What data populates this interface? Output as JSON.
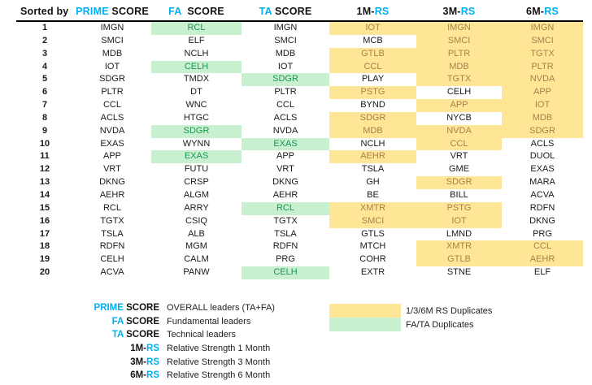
{
  "header": {
    "sorted_by": "Sorted by",
    "columns": [
      {
        "name": "prime-score",
        "parts": [
          {
            "t": "PRIME",
            "c": "accent"
          },
          {
            "t": " SCORE",
            "c": "ink"
          }
        ]
      },
      {
        "name": "fa-score",
        "parts": [
          {
            "t": "FA",
            "c": "accent"
          },
          {
            "t": "  SCORE",
            "c": "ink"
          }
        ]
      },
      {
        "name": "ta-score",
        "parts": [
          {
            "t": "TA",
            "c": "accent"
          },
          {
            "t": " SCORE",
            "c": "ink"
          }
        ]
      },
      {
        "name": "1m-rs",
        "parts": [
          {
            "t": "1M-",
            "c": "ink"
          },
          {
            "t": "RS",
            "c": "accent"
          }
        ]
      },
      {
        "name": "3m-rs",
        "parts": [
          {
            "t": "3M-",
            "c": "ink"
          },
          {
            "t": "RS",
            "c": "accent"
          }
        ]
      },
      {
        "name": "6m-rs",
        "parts": [
          {
            "t": "6M-",
            "c": "ink"
          },
          {
            "t": "RS",
            "c": "accent"
          }
        ]
      }
    ]
  },
  "rows": [
    {
      "rank": "1",
      "cells": [
        {
          "t": "IMGN"
        },
        {
          "t": "RCL",
          "h": "g"
        },
        {
          "t": "IMGN"
        },
        {
          "t": "IOT",
          "h": "y"
        },
        {
          "t": "IMGN",
          "h": "y"
        },
        {
          "t": "IMGN",
          "h": "y"
        }
      ]
    },
    {
      "rank": "2",
      "cells": [
        {
          "t": "SMCI"
        },
        {
          "t": "ELF"
        },
        {
          "t": "SMCI"
        },
        {
          "t": "MCB"
        },
        {
          "t": "SMCI",
          "h": "y"
        },
        {
          "t": "SMCI",
          "h": "y"
        }
      ]
    },
    {
      "rank": "3",
      "cells": [
        {
          "t": "MDB"
        },
        {
          "t": "NCLH"
        },
        {
          "t": "MDB"
        },
        {
          "t": "GTLB",
          "h": "y"
        },
        {
          "t": "PLTR",
          "h": "y"
        },
        {
          "t": "TGTX",
          "h": "y"
        }
      ]
    },
    {
      "rank": "4",
      "cells": [
        {
          "t": "IOT"
        },
        {
          "t": "CELH",
          "h": "g"
        },
        {
          "t": "IOT"
        },
        {
          "t": "CCL",
          "h": "y"
        },
        {
          "t": "MDB",
          "h": "y"
        },
        {
          "t": "PLTR",
          "h": "y"
        }
      ]
    },
    {
      "rank": "5",
      "cells": [
        {
          "t": "SDGR"
        },
        {
          "t": "TMDX"
        },
        {
          "t": "SDGR",
          "h": "g"
        },
        {
          "t": "PLAY"
        },
        {
          "t": "TGTX",
          "h": "y"
        },
        {
          "t": "NVDA",
          "h": "y"
        }
      ]
    },
    {
      "rank": "6",
      "cells": [
        {
          "t": "PLTR"
        },
        {
          "t": "DT"
        },
        {
          "t": "PLTR"
        },
        {
          "t": "PSTG",
          "h": "y"
        },
        {
          "t": "CELH"
        },
        {
          "t": "APP",
          "h": "y"
        }
      ]
    },
    {
      "rank": "7",
      "cells": [
        {
          "t": "CCL"
        },
        {
          "t": "WNC"
        },
        {
          "t": "CCL"
        },
        {
          "t": "BYND"
        },
        {
          "t": "APP",
          "h": "y"
        },
        {
          "t": "IOT",
          "h": "y"
        }
      ]
    },
    {
      "rank": "8",
      "cells": [
        {
          "t": "ACLS"
        },
        {
          "t": "HTGC"
        },
        {
          "t": "ACLS"
        },
        {
          "t": "SDGR",
          "h": "y"
        },
        {
          "t": "NYCB"
        },
        {
          "t": "MDB",
          "h": "y"
        }
      ]
    },
    {
      "rank": "9",
      "cells": [
        {
          "t": "NVDA"
        },
        {
          "t": "SDGR",
          "h": "g"
        },
        {
          "t": "NVDA"
        },
        {
          "t": "MDB",
          "h": "y"
        },
        {
          "t": "NVDA",
          "h": "y"
        },
        {
          "t": "SDGR",
          "h": "y"
        }
      ]
    },
    {
      "rank": "10",
      "cells": [
        {
          "t": "EXAS"
        },
        {
          "t": "WYNN"
        },
        {
          "t": "EXAS",
          "h": "g"
        },
        {
          "t": "NCLH"
        },
        {
          "t": "CCL",
          "h": "y"
        },
        {
          "t": "ACLS"
        }
      ]
    },
    {
      "rank": "11",
      "cells": [
        {
          "t": "APP"
        },
        {
          "t": "EXAS",
          "h": "g"
        },
        {
          "t": "APP"
        },
        {
          "t": "AEHR",
          "h": "y"
        },
        {
          "t": "VRT"
        },
        {
          "t": "DUOL"
        }
      ]
    },
    {
      "rank": "12",
      "cells": [
        {
          "t": "VRT"
        },
        {
          "t": "FUTU"
        },
        {
          "t": "VRT"
        },
        {
          "t": "TSLA"
        },
        {
          "t": "GME"
        },
        {
          "t": "EXAS"
        }
      ]
    },
    {
      "rank": "13",
      "cells": [
        {
          "t": "DKNG"
        },
        {
          "t": "CRSP"
        },
        {
          "t": "DKNG"
        },
        {
          "t": "GH"
        },
        {
          "t": "SDGR",
          "h": "y"
        },
        {
          "t": "MARA"
        }
      ]
    },
    {
      "rank": "14",
      "cells": [
        {
          "t": "AEHR"
        },
        {
          "t": "ALGM"
        },
        {
          "t": "AEHR"
        },
        {
          "t": "BE"
        },
        {
          "t": "BILL"
        },
        {
          "t": "ACVA"
        }
      ]
    },
    {
      "rank": "15",
      "cells": [
        {
          "t": "RCL"
        },
        {
          "t": "ARRY"
        },
        {
          "t": "RCL",
          "h": "g"
        },
        {
          "t": "XMTR",
          "h": "y"
        },
        {
          "t": "PSTG",
          "h": "y"
        },
        {
          "t": "RDFN"
        }
      ]
    },
    {
      "rank": "16",
      "cells": [
        {
          "t": "TGTX"
        },
        {
          "t": "CSIQ"
        },
        {
          "t": "TGTX"
        },
        {
          "t": "SMCI",
          "h": "y"
        },
        {
          "t": "IOT",
          "h": "y"
        },
        {
          "t": "DKNG"
        }
      ]
    },
    {
      "rank": "17",
      "cells": [
        {
          "t": "TSLA"
        },
        {
          "t": "ALB"
        },
        {
          "t": "TSLA"
        },
        {
          "t": "GTLS"
        },
        {
          "t": "LMND"
        },
        {
          "t": "PRG"
        }
      ]
    },
    {
      "rank": "18",
      "cells": [
        {
          "t": "RDFN"
        },
        {
          "t": "MGM"
        },
        {
          "t": "RDFN"
        },
        {
          "t": "MTCH"
        },
        {
          "t": "XMTR",
          "h": "y"
        },
        {
          "t": "CCL",
          "h": "y"
        }
      ]
    },
    {
      "rank": "19",
      "cells": [
        {
          "t": "CELH"
        },
        {
          "t": "CALM"
        },
        {
          "t": "PRG"
        },
        {
          "t": "COHR"
        },
        {
          "t": "GTLB",
          "h": "y"
        },
        {
          "t": "AEHR",
          "h": "y"
        }
      ]
    },
    {
      "rank": "20",
      "cells": [
        {
          "t": "ACVA"
        },
        {
          "t": "PANW"
        },
        {
          "t": "CELH",
          "h": "g"
        },
        {
          "t": "EXTR"
        },
        {
          "t": "STNE"
        },
        {
          "t": "ELF"
        }
      ]
    }
  ],
  "legend": {
    "items": [
      {
        "name": "prime-score",
        "parts": [
          {
            "t": "PRIME",
            "c": "accent"
          },
          {
            "t": " SCORE",
            "c": "ink"
          }
        ],
        "desc": "OVERALL leaders (TA+FA)"
      },
      {
        "name": "fa-score",
        "parts": [
          {
            "t": "FA",
            "c": "accent"
          },
          {
            "t": " SCORE",
            "c": "ink"
          }
        ],
        "desc": "Fundamental leaders"
      },
      {
        "name": "ta-score",
        "parts": [
          {
            "t": "TA",
            "c": "accent"
          },
          {
            "t": " SCORE",
            "c": "ink"
          }
        ],
        "desc": "Technical leaders"
      },
      {
        "name": "1m-rs",
        "parts": [
          {
            "t": "1M-",
            "c": "ink"
          },
          {
            "t": "RS",
            "c": "accent"
          }
        ],
        "desc": "Relative Strength 1 Month"
      },
      {
        "name": "3m-rs",
        "parts": [
          {
            "t": "3M-",
            "c": "ink"
          },
          {
            "t": "RS",
            "c": "accent"
          }
        ],
        "desc": "Relative Strength 3 Month"
      },
      {
        "name": "6m-rs",
        "parts": [
          {
            "t": "6M-",
            "c": "ink"
          },
          {
            "t": "RS",
            "c": "accent"
          }
        ],
        "desc": "Relative Strength 6 Month"
      }
    ],
    "swatches": [
      {
        "color": "yellow",
        "label": "1/3/6M RS Duplicates"
      },
      {
        "color": "green",
        "label": "FA/TA Duplicates"
      }
    ]
  },
  "colors": {
    "accent_cyan": "#00B0F0",
    "yellow_highlight_bg": "#FFE596",
    "yellow_highlight_text": "#A5824A",
    "green_highlight_bg": "#C8EFD0",
    "green_highlight_text": "#17994F",
    "ink": "#1A1A1A"
  }
}
